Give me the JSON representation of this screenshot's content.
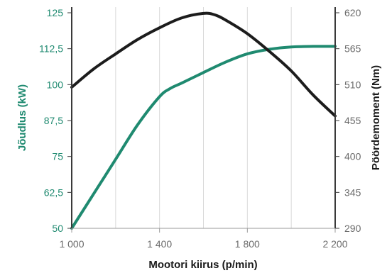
{
  "chart_data": {
    "type": "line",
    "xlabel": "Mootori kiirus (p/min)",
    "ylabel_left": "Jõudlus (kW)",
    "ylabel_right": "Pöördemoment (Nm)",
    "xlim": [
      1000,
      2200
    ],
    "x_ticks": [
      1000,
      1400,
      1800,
      2200
    ],
    "x_tick_labels": [
      "1 000",
      "1 400",
      "1 800",
      "2 200"
    ],
    "ylim_left": [
      50,
      125
    ],
    "y_left_ticks": [
      50,
      62.5,
      75,
      87.5,
      100,
      112.5,
      125
    ],
    "y_left_tick_labels": [
      "50",
      "62,5",
      "75",
      "87,5",
      "100",
      "112,5",
      "125"
    ],
    "ylim_right": [
      290,
      620
    ],
    "y_right_ticks": [
      290,
      345,
      400,
      455,
      510,
      565,
      620
    ],
    "y_right_tick_labels": [
      "290",
      "345",
      "400",
      "455",
      "510",
      "565",
      "620"
    ],
    "grid": "vertical",
    "series": [
      {
        "axis": "left",
        "color": "#1f8a70",
        "x": [
          1000,
          1100,
          1200,
          1300,
          1400,
          1450,
          1500,
          1600,
          1700,
          1800,
          1900,
          2000,
          2100,
          2200
        ],
        "values": [
          50,
          62,
          74,
          86,
          95.8,
          98.7,
          100.5,
          104.2,
          107.8,
          110.7,
          112.3,
          113.1,
          113.3,
          113.3
        ]
      },
      {
        "axis": "right",
        "color": "#1c1c1c",
        "x": [
          1000,
          1100,
          1200,
          1300,
          1400,
          1500,
          1600,
          1650,
          1700,
          1800,
          1900,
          2000,
          2100,
          2200
        ],
        "values": [
          506,
          534,
          557,
          579,
          597,
          612,
          619,
          617,
          609,
          588,
          561,
          531,
          494,
          462
        ]
      }
    ]
  }
}
